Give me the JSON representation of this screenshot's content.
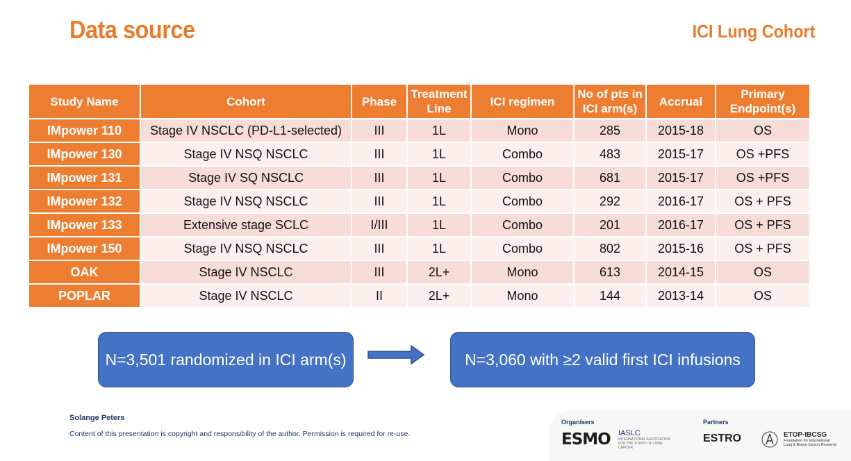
{
  "header": {
    "title": "Data source",
    "cohort": "ICI Lung Cohort"
  },
  "table": {
    "columns": [
      "Study Name",
      "Cohort",
      "Phase",
      "Treatment Line",
      "ICI regimen",
      "No of pts in ICI arm(s)",
      "Accrual",
      "Primary Endpoint(s)"
    ],
    "rows": [
      [
        "IMpower 110",
        "Stage IV NSCLC (PD-L1-selected)",
        "III",
        "1L",
        "Mono",
        "285",
        "2015-18",
        "OS"
      ],
      [
        "IMpower 130",
        "Stage IV NSQ NSCLC",
        "III",
        "1L",
        "Combo",
        "483",
        "2015-17",
        "OS +PFS"
      ],
      [
        "IMpower 131",
        "Stage IV SQ NSCLC",
        "III",
        "1L",
        "Combo",
        "681",
        "2015-17",
        "OS +PFS"
      ],
      [
        "IMpower 132",
        "Stage IV NSQ NSCLC",
        "III",
        "1L",
        "Combo",
        "292",
        "2016-17",
        "OS + PFS"
      ],
      [
        "IMpower 133",
        "Extensive stage  SCLC",
        "I/III",
        "1L",
        "Combo",
        "201",
        "2016-17",
        "OS + PFS"
      ],
      [
        "IMpower 150",
        "Stage IV NSQ NSCLC",
        "III",
        "1L",
        "Combo",
        "802",
        "2015-16",
        "OS + PFS"
      ],
      [
        "OAK",
        "Stage IV NSCLC",
        "III",
        "2L+",
        "Mono",
        "613",
        "2014-15",
        "OS"
      ],
      [
        "POPLAR",
        "Stage IV NSCLC",
        "II",
        "2L+",
        "Mono",
        "144",
        "2013-14",
        "OS"
      ]
    ]
  },
  "flow": {
    "left": "N=3,501 randomized in ICI arm(s)",
    "right": "N=3,060 with ≥2 valid first ICI infusions"
  },
  "footer": {
    "author": "Solange Peters",
    "copyright": "Content of this presentation is copyright and responsibility of the author. Permission is required for re-use.",
    "organisers_label": "Organisers",
    "partners_label": "Partners",
    "logos": {
      "esmo": "ESMO",
      "iaslc": "IASLC",
      "iaslc_sub": "INTERNATIONAL ASSOCIATION FOR THE STUDY OF LUNG CANCER",
      "estro": "ESTRO",
      "etop": "ETOP·IBCSG",
      "etop_sub": "Foundation for International Lung & Breast Cancer Research"
    }
  },
  "colors": {
    "accent": "#ed7d31",
    "row_odd": "#f8dcd7",
    "row_even": "#fcefed",
    "box": "#4472c4"
  }
}
